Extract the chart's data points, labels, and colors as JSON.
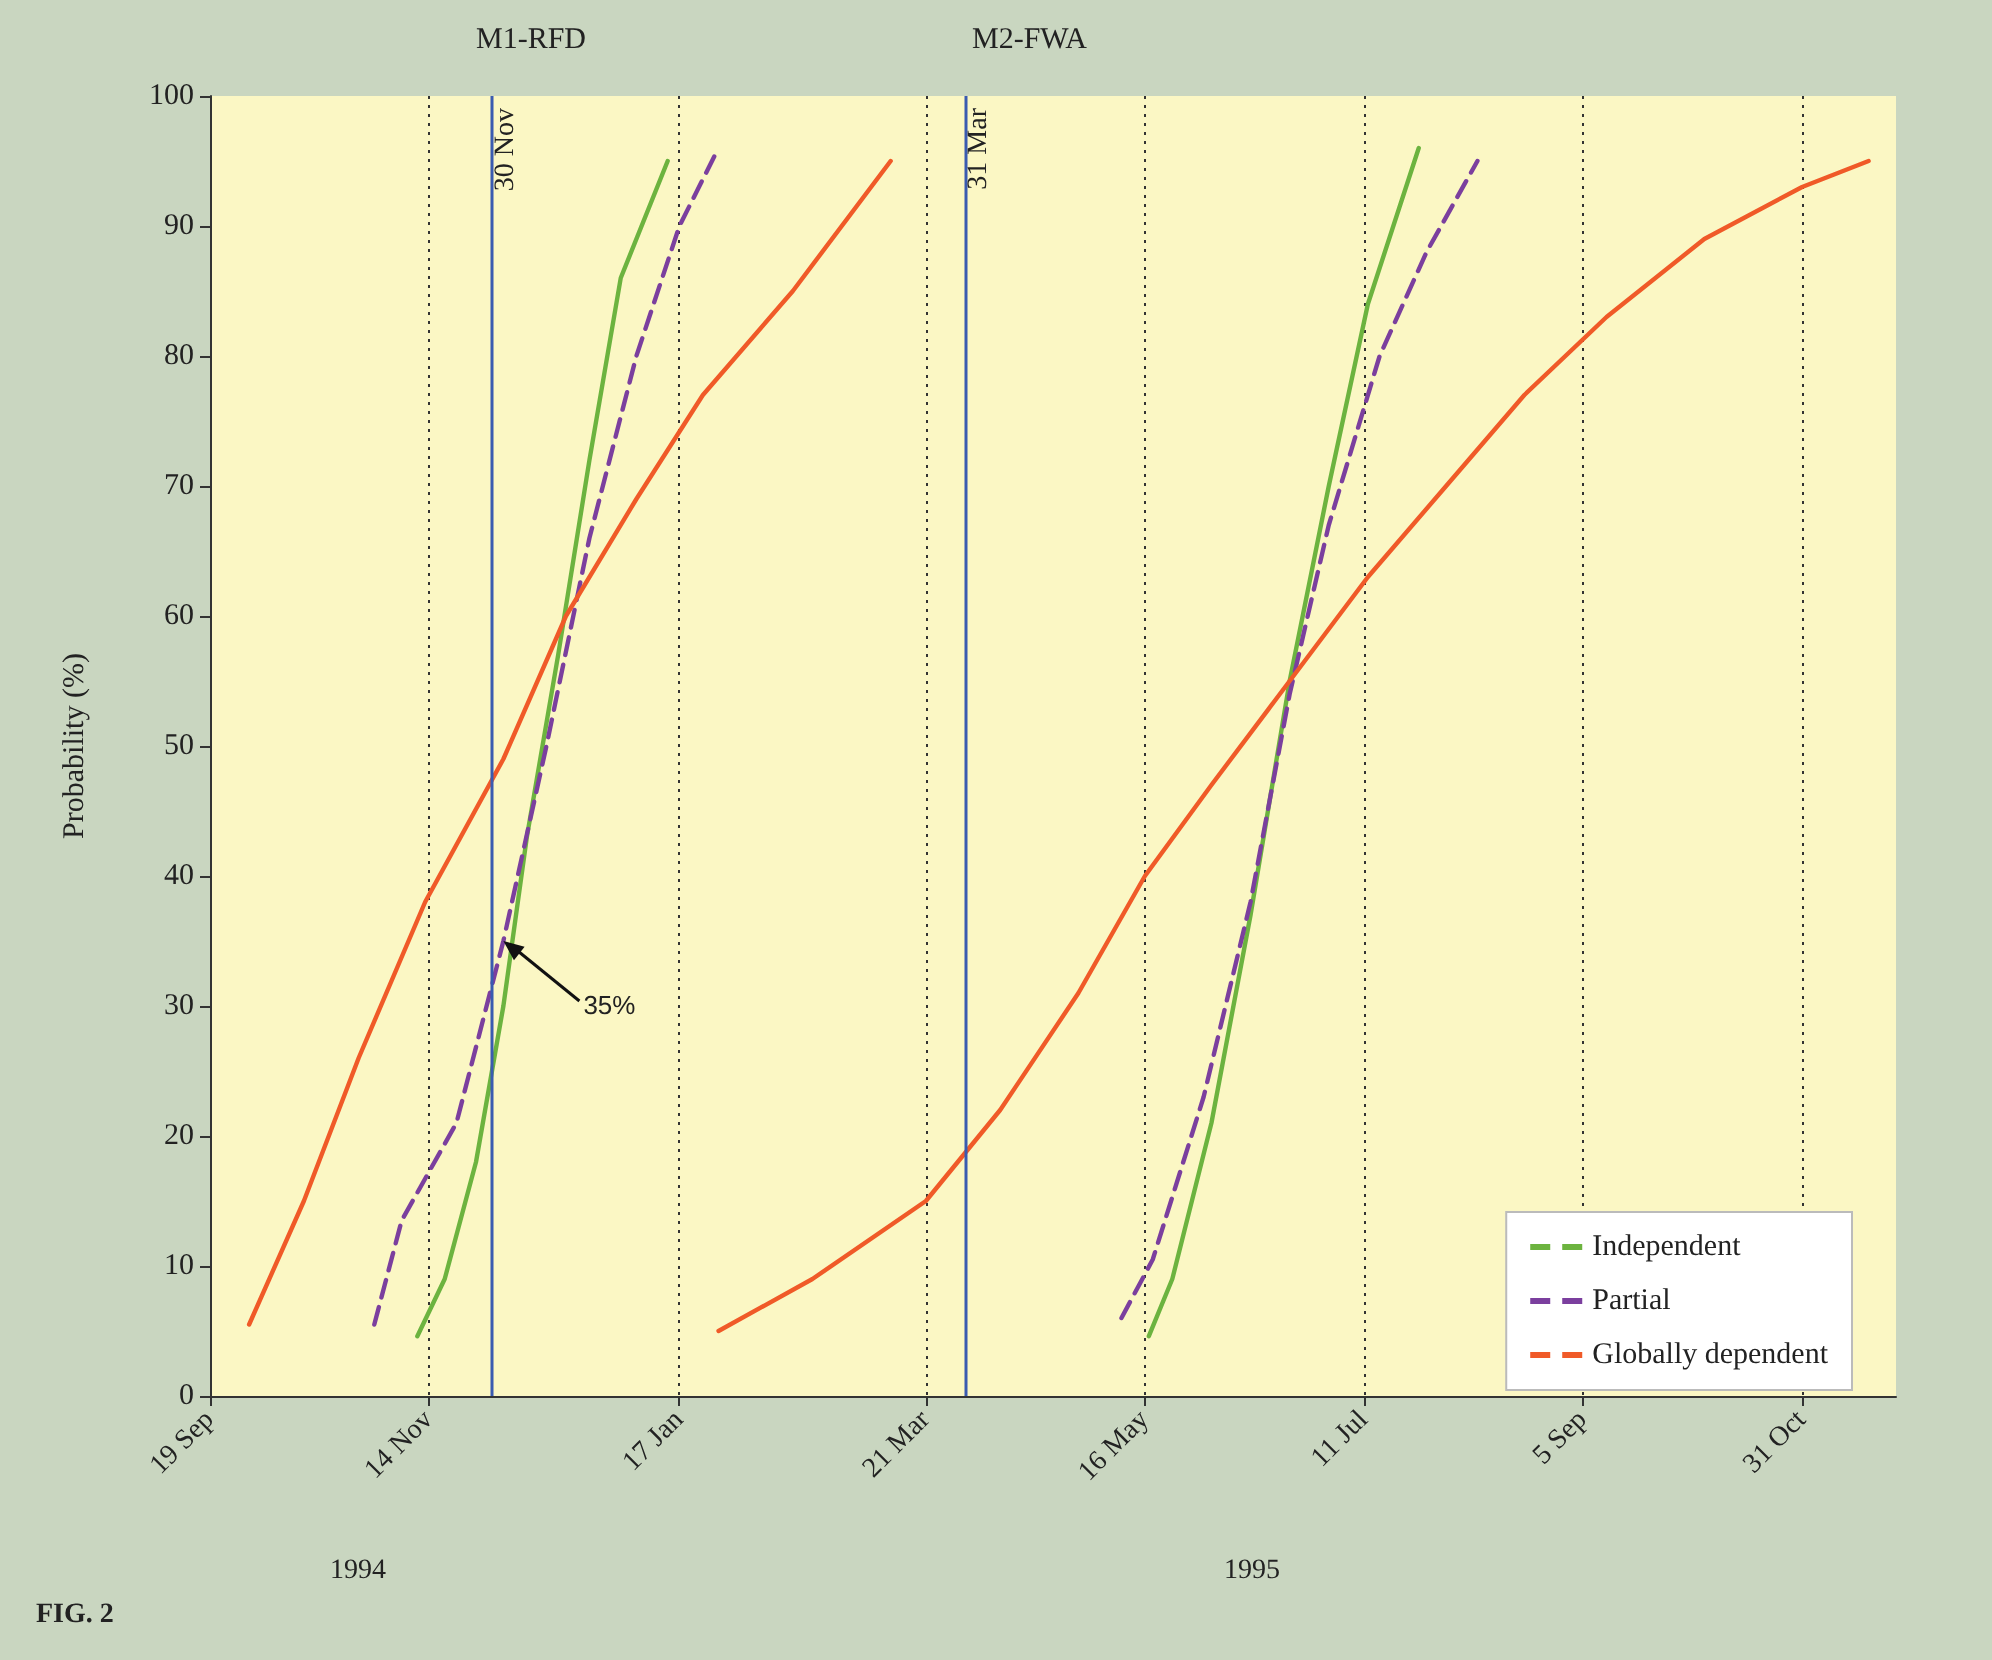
{
  "chart_data": {
    "type": "line",
    "ylabel": "Probability (%)",
    "xlim": [
      "1994-09-19",
      "1995-11-24"
    ],
    "ylim": [
      0,
      100
    ],
    "xticks": [
      {
        "value": "1994-09-19",
        "label": "19 Sep"
      },
      {
        "value": "1994-11-14",
        "label": "14 Nov"
      },
      {
        "value": "1995-01-17",
        "label": "17 Jan"
      },
      {
        "value": "1995-03-21",
        "label": "21 Mar"
      },
      {
        "value": "1995-05-16",
        "label": "16 May"
      },
      {
        "value": "1995-07-11",
        "label": "11 Jul"
      },
      {
        "value": "1995-09-05",
        "label": "5 Sep"
      },
      {
        "value": "1995-10-31",
        "label": "31 Oct"
      }
    ],
    "yticks": [
      0,
      10,
      20,
      30,
      40,
      50,
      60,
      70,
      80,
      90,
      100
    ],
    "grid": "x",
    "legend": "bottom right",
    "marker": "none",
    "series": [
      {
        "name": "Independent",
        "color": "#6cb33f",
        "line_style": "solid",
        "x": [
          "1994-11-11",
          "1994-11-18",
          "1994-11-26",
          "1994-12-03",
          "1994-12-09",
          "1994-12-17",
          "1994-12-25",
          "1995-01-02",
          "1995-01-14",
          null,
          "1995-05-17",
          "1995-05-23",
          "1995-06-02",
          "1995-06-12",
          "1995-06-22",
          "1995-07-02",
          "1995-07-12",
          "1995-07-25"
        ],
        "values": [
          4.6,
          9,
          18,
          30,
          43,
          57,
          72,
          86,
          95,
          null,
          4.6,
          9,
          21,
          37,
          55,
          70,
          84,
          96
        ]
      },
      {
        "name": "Partial",
        "color": "#7b3f9e",
        "line_style": "dashed",
        "x": [
          "1994-10-31",
          "1994-11-07",
          "1994-11-21",
          "1994-12-03",
          "1994-12-14",
          "1994-12-25",
          "1995-01-06",
          "1995-01-17",
          "1995-01-27",
          null,
          "1995-05-10",
          "1995-05-18",
          "1995-05-31",
          "1995-06-12",
          "1995-06-22",
          "1995-07-02",
          "1995-07-15",
          "1995-07-27",
          "1995-08-09"
        ],
        "values": [
          5.5,
          13.5,
          21,
          35,
          50,
          66,
          80,
          90,
          96,
          null,
          6,
          10.5,
          23,
          38,
          54,
          67,
          80,
          88,
          95
        ]
      },
      {
        "name": "Globally dependent",
        "color": "#f05a28",
        "line_style": "solid",
        "x": [
          "1994-09-29",
          "1994-10-13",
          "1994-10-27",
          "1994-11-13",
          "1994-12-03",
          "1994-12-19",
          "1995-01-06",
          "1995-01-23",
          "1995-02-15",
          "1995-03-12",
          null,
          "1995-01-27",
          "1995-02-20",
          "1995-03-21",
          "1995-04-09",
          "1995-04-29",
          "1995-05-16",
          "1995-06-02",
          "1995-06-22",
          "1995-07-12",
          "1995-08-01",
          "1995-08-21",
          "1995-09-11",
          "1995-10-06",
          "1995-10-31",
          "1995-11-17"
        ],
        "values": [
          5.5,
          15,
          26,
          38,
          49,
          60,
          69,
          77,
          85,
          95,
          null,
          5,
          9,
          15,
          22,
          31,
          40,
          47,
          55,
          63,
          70,
          77,
          83,
          89,
          93,
          95
        ]
      }
    ],
    "ref_lines": [
      {
        "axis": "x",
        "value": "1994-11-30",
        "label": "30 Nov",
        "color": "#3a5bb0"
      },
      {
        "axis": "x",
        "value": "1995-03-31",
        "label": "31 Mar",
        "color": "#3a5bb0"
      }
    ],
    "annotations": [
      "1994",
      "1995",
      "FIG. 2",
      "M1-RFD",
      "M2-FWA",
      {
        "text": "35%",
        "x": "1994-12-03",
        "y": 35
      }
    ]
  }
}
